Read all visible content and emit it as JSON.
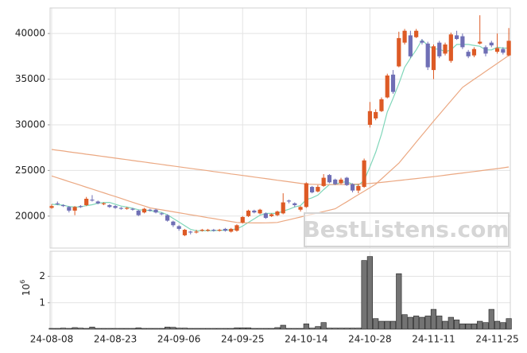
{
  "chart_data": {
    "type": "candlestick",
    "watermark": "BestListens.com",
    "up_color": "#dd5a25",
    "down_color": "#6f6fb5",
    "ylim": [
      16500,
      42800
    ],
    "yticks": [
      20000,
      25000,
      30000,
      35000,
      40000
    ],
    "grid": true,
    "categories": [
      "24-08-08",
      null,
      null,
      null,
      null,
      null,
      null,
      null,
      null,
      null,
      null,
      "24-08-23",
      null,
      null,
      null,
      null,
      null,
      null,
      null,
      null,
      null,
      null,
      "24-09-06",
      null,
      null,
      null,
      null,
      null,
      null,
      null,
      null,
      null,
      null,
      "24-09-25",
      null,
      null,
      null,
      null,
      null,
      null,
      null,
      null,
      null,
      null,
      "24-10-14",
      null,
      null,
      null,
      null,
      null,
      null,
      null,
      null,
      null,
      null,
      "24-10-28",
      null,
      null,
      null,
      null,
      null,
      null,
      null,
      null,
      null,
      null,
      "24-11-11",
      null,
      null,
      null,
      null,
      null,
      null,
      null,
      null,
      null,
      null,
      "24-11-25",
      null,
      null
    ],
    "open": [
      20900,
      21400,
      21200,
      21000,
      20600,
      21100,
      21200,
      21800,
      21600,
      21300,
      21200,
      21100,
      20900,
      20800,
      20800,
      20600,
      20400,
      20700,
      20700,
      20300,
      20100,
      19400,
      18900,
      17900,
      18300,
      18200,
      18400,
      18400,
      18500,
      18400,
      18600,
      18300,
      18400,
      19300,
      20000,
      20600,
      20300,
      20300,
      20000,
      20100,
      20300,
      21700,
      21400,
      20700,
      21000,
      23200,
      22700,
      23300,
      24500,
      24000,
      23600,
      24200,
      23500,
      22800,
      23200,
      30000,
      30700,
      31500,
      33000,
      35500,
      36400,
      39000,
      39800,
      39600,
      39200,
      38900,
      36000,
      39000,
      37800,
      37000,
      39800,
      39700,
      38000,
      37600,
      38900,
      38500,
      39000,
      38000,
      38300,
      37600
    ],
    "high": [
      21300,
      21600,
      21300,
      21100,
      21100,
      21200,
      22100,
      22300,
      21700,
      21500,
      21300,
      21200,
      21000,
      21000,
      20900,
      20700,
      20900,
      20800,
      20800,
      20400,
      20200,
      19500,
      19000,
      18600,
      18400,
      18500,
      18600,
      18600,
      18600,
      18600,
      18700,
      18700,
      19100,
      20000,
      20700,
      20700,
      20800,
      20400,
      20300,
      20600,
      22500,
      21800,
      21500,
      21100,
      23700,
      23300,
      23400,
      24600,
      24600,
      24100,
      24200,
      24300,
      23600,
      23500,
      26300,
      32500,
      31700,
      33000,
      35600,
      36000,
      40200,
      40500,
      40300,
      40500,
      39400,
      39100,
      38800,
      39200,
      39000,
      40100,
      40300,
      40000,
      38200,
      38500,
      42000,
      38700,
      39200,
      40000,
      38500,
      40600
    ],
    "low": [
      20800,
      21200,
      21000,
      20400,
      20100,
      20900,
      21100,
      21600,
      21300,
      21200,
      20900,
      20800,
      20700,
      20700,
      20600,
      20000,
      20300,
      20500,
      20300,
      20100,
      19400,
      18800,
      18400,
      17800,
      18000,
      18100,
      18300,
      18300,
      18300,
      18300,
      18300,
      18200,
      18300,
      19200,
      19900,
      20300,
      20200,
      19700,
      19900,
      20000,
      20200,
      21400,
      21000,
      20500,
      20900,
      22500,
      22600,
      23200,
      23600,
      23400,
      23500,
      23300,
      22600,
      22500,
      23100,
      29700,
      30500,
      31400,
      32900,
      33400,
      36300,
      38800,
      37300,
      39500,
      38800,
      36000,
      35000,
      37300,
      37600,
      36800,
      39300,
      38300,
      37300,
      37400,
      38800,
      37500,
      38500,
      37800,
      37700,
      37500
    ],
    "close": [
      21100,
      21300,
      21100,
      20600,
      21000,
      21000,
      21900,
      21700,
      21400,
      21400,
      21000,
      20900,
      20800,
      20900,
      20700,
      20100,
      20800,
      20600,
      20400,
      20200,
      19500,
      19000,
      18600,
      18500,
      18200,
      18300,
      18500,
      18500,
      18400,
      18500,
      18400,
      18600,
      19000,
      19900,
      20600,
      20400,
      20700,
      19800,
      20200,
      20500,
      21500,
      21600,
      21200,
      21000,
      23600,
      22600,
      23200,
      24200,
      23700,
      23500,
      24000,
      23400,
      22800,
      23300,
      26100,
      31500,
      31400,
      32800,
      35400,
      33600,
      39500,
      40300,
      37500,
      40300,
      39000,
      36300,
      38600,
      37500,
      38800,
      39900,
      39400,
      38500,
      37500,
      38300,
      39100,
      37800,
      38700,
      38400,
      37900,
      39200
    ],
    "series": [
      {
        "color": "#7fd6b9",
        "values": [
          21300,
          21250,
          21200,
          21050,
          21000,
          21000,
          21150,
          21250,
          21400,
          21500,
          21500,
          21300,
          21100,
          21000,
          20850,
          20700,
          20650,
          20600,
          20500,
          20400,
          20150,
          19750,
          19350,
          18950,
          18550,
          18400,
          18400,
          18400,
          18400,
          18450,
          18450,
          18500,
          18600,
          18900,
          19300,
          19700,
          20100,
          20300,
          20300,
          20300,
          20550,
          20750,
          21000,
          21150,
          21800,
          22000,
          22300,
          22900,
          23450,
          23450,
          23700,
          23750,
          23500,
          23400,
          23900,
          25400,
          27000,
          29000,
          31400,
          32900,
          34500,
          36300,
          37300,
          38200,
          39300,
          38700,
          38300,
          38300,
          38000,
          38200,
          38800,
          38800,
          38800,
          38700,
          38600,
          38200,
          38200,
          38500,
          38400,
          38400
        ]
      },
      {
        "color": "#eba882",
        "values": [
          24400,
          24190,
          23990,
          23780,
          23580,
          23370,
          23160,
          22960,
          22750,
          22550,
          22340,
          22140,
          21930,
          21720,
          21520,
          21310,
          21110,
          20900,
          20790,
          20690,
          20580,
          20470,
          20370,
          20260,
          20150,
          20050,
          19940,
          19830,
          19730,
          19620,
          19510,
          19410,
          19300,
          19280,
          19260,
          19250,
          19250,
          19260,
          19280,
          19300,
          19450,
          19600,
          19750,
          19900,
          20050,
          20200,
          20350,
          20500,
          20650,
          20800,
          21190,
          21570,
          21960,
          22340,
          22730,
          23110,
          23500,
          24080,
          24650,
          25230,
          25800,
          26570,
          27330,
          28100,
          28870,
          29630,
          30400,
          31140,
          31880,
          32620,
          33360,
          34100,
          34540,
          34980,
          35410,
          35850,
          36290,
          36730,
          37160,
          37600
        ]
      },
      {
        "color": "#eba882",
        "values": [
          27300,
          27210,
          27130,
          27040,
          26950,
          26870,
          26780,
          26700,
          26610,
          26520,
          26440,
          26350,
          26260,
          26180,
          26090,
          26000,
          25920,
          25830,
          25750,
          25660,
          25570,
          25490,
          25400,
          25310,
          25230,
          25140,
          25060,
          24970,
          24880,
          24800,
          24710,
          24620,
          24540,
          24450,
          24370,
          24280,
          24190,
          24110,
          24020,
          23930,
          23850,
          23760,
          23680,
          23590,
          23500,
          23480,
          23470,
          23460,
          23450,
          23450,
          23460,
          23470,
          23490,
          23510,
          23540,
          23580,
          23630,
          23690,
          23760,
          23830,
          23900,
          23970,
          24040,
          24110,
          24180,
          24250,
          24320,
          24400,
          24480,
          24560,
          24640,
          24720,
          24800,
          24880,
          24960,
          25040,
          25120,
          25200,
          25290,
          25380
        ]
      }
    ],
    "volume": {
      "color": "#737373",
      "scale_label": {
        "base": "10",
        "exponent": "6"
      },
      "ylim": [
        0,
        2.95
      ],
      "yticks": [
        1,
        2
      ],
      "values": [
        0.03,
        0.03,
        0.04,
        0.03,
        0.06,
        0.04,
        0.03,
        0.08,
        0.03,
        0.03,
        0.03,
        0.03,
        0.03,
        0.03,
        0.03,
        0.05,
        0.03,
        0.03,
        0.03,
        0.03,
        0.08,
        0.07,
        0.04,
        0.04,
        0.03,
        0.03,
        0.03,
        0.03,
        0.03,
        0.03,
        0.03,
        0.03,
        0.05,
        0.05,
        0.05,
        0.03,
        0.03,
        0.03,
        0.03,
        0.06,
        0.15,
        0.03,
        0.03,
        0.03,
        0.2,
        0.04,
        0.1,
        0.25,
        0.04,
        0.04,
        0.04,
        0.04,
        0.04,
        0.04,
        2.6,
        2.75,
        0.4,
        0.3,
        0.3,
        0.3,
        2.1,
        0.55,
        0.45,
        0.5,
        0.45,
        0.5,
        0.75,
        0.5,
        0.3,
        0.45,
        0.35,
        0.2,
        0.2,
        0.2,
        0.3,
        0.25,
        0.75,
        0.3,
        0.25,
        0.4
      ]
    }
  }
}
